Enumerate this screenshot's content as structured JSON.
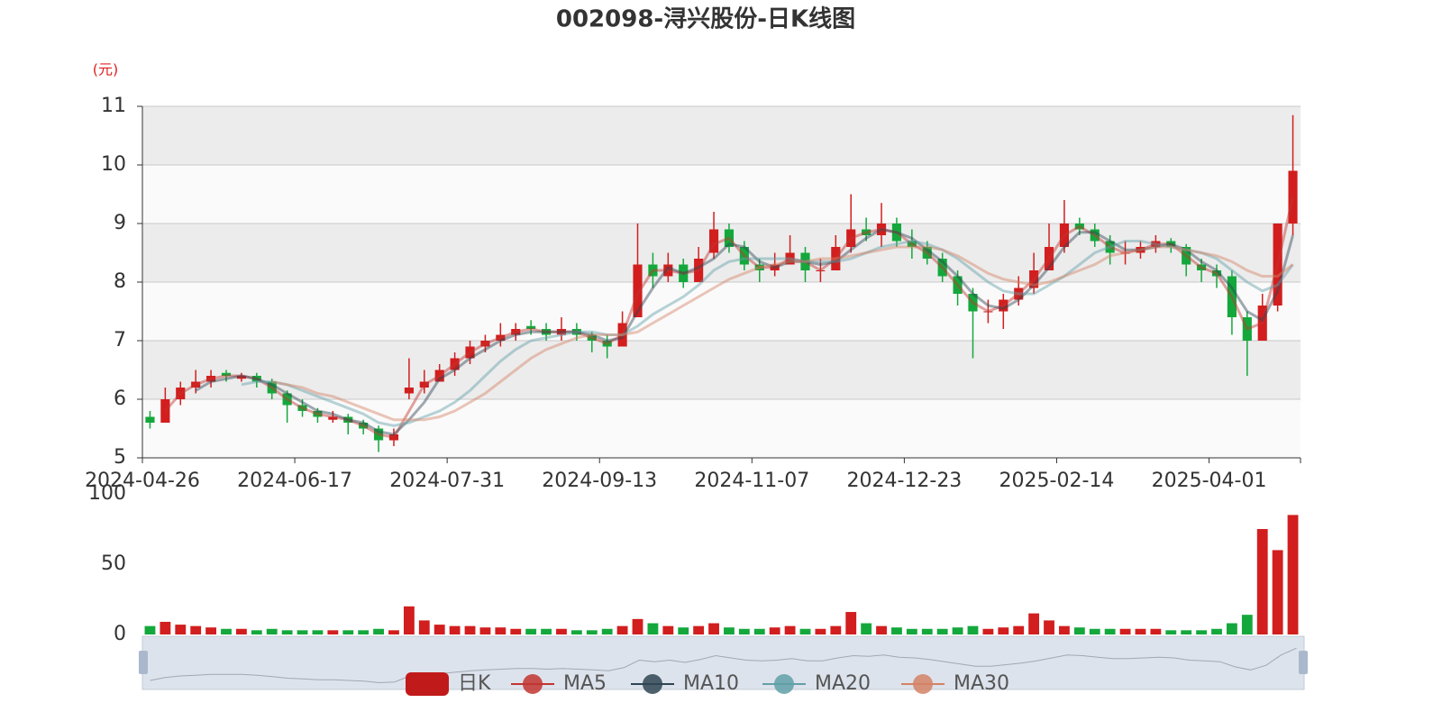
{
  "chart_data": [
    {
      "type": "candlestick",
      "title": "002098-浔兴股份-日K线图",
      "y_unit": "(元)",
      "categories": [
        "2024-04-26",
        null,
        null,
        null,
        null,
        null,
        null,
        null,
        null,
        null,
        "2024-06-17",
        null,
        null,
        null,
        null,
        null,
        null,
        null,
        null,
        null,
        "2024-07-31",
        null,
        null,
        null,
        null,
        null,
        null,
        null,
        null,
        null,
        "2024-09-13",
        null,
        null,
        null,
        null,
        null,
        null,
        null,
        null,
        null,
        "2024-11-07",
        null,
        null,
        null,
        null,
        null,
        null,
        null,
        null,
        null,
        "2024-12-23",
        null,
        null,
        null,
        null,
        null,
        null,
        null,
        null,
        null,
        "2025-02-14",
        null,
        null,
        null,
        null,
        null,
        null,
        null,
        null,
        null,
        "2025-04-01",
        null,
        null,
        null,
        null,
        null
      ],
      "ylim": [
        5,
        11
      ],
      "yticks": [
        5,
        6,
        7,
        8,
        9,
        10,
        11
      ],
      "grid": true,
      "up_color": "#d21e1e",
      "down_color": "#14a83c",
      "series": [
        {
          "name": "日K",
          "type": "candlestick",
          "color": "#c11a1a",
          "values": [
            [
              5.7,
              5.6,
              5.5,
              5.8
            ],
            [
              5.6,
              6.0,
              5.6,
              6.2
            ],
            [
              6.0,
              6.2,
              5.9,
              6.3
            ],
            [
              6.2,
              6.3,
              6.1,
              6.5
            ],
            [
              6.3,
              6.4,
              6.2,
              6.5
            ],
            [
              6.45,
              6.4,
              6.3,
              6.5
            ],
            [
              6.35,
              6.4,
              6.3,
              6.45
            ],
            [
              6.4,
              6.3,
              6.2,
              6.45
            ],
            [
              6.3,
              6.1,
              6.0,
              6.35
            ],
            [
              6.1,
              5.9,
              5.6,
              6.15
            ],
            [
              5.9,
              5.8,
              5.7,
              6.0
            ],
            [
              5.8,
              5.7,
              5.6,
              5.85
            ],
            [
              5.65,
              5.7,
              5.6,
              5.8
            ],
            [
              5.7,
              5.6,
              5.4,
              5.75
            ],
            [
              5.6,
              5.5,
              5.4,
              5.65
            ],
            [
              5.5,
              5.3,
              5.1,
              5.55
            ],
            [
              5.3,
              5.4,
              5.2,
              5.5
            ],
            [
              6.1,
              6.2,
              6.0,
              6.7
            ],
            [
              6.2,
              6.3,
              6.1,
              6.5
            ],
            [
              6.3,
              6.5,
              6.3,
              6.6
            ],
            [
              6.5,
              6.7,
              6.4,
              6.8
            ],
            [
              6.7,
              6.9,
              6.6,
              7.0
            ],
            [
              6.9,
              7.0,
              6.8,
              7.1
            ],
            [
              7.0,
              7.1,
              6.9,
              7.3
            ],
            [
              7.1,
              7.2,
              7.0,
              7.3
            ],
            [
              7.25,
              7.2,
              7.1,
              7.35
            ],
            [
              7.2,
              7.1,
              7.0,
              7.3
            ],
            [
              7.1,
              7.2,
              7.0,
              7.4
            ],
            [
              7.2,
              7.1,
              7.0,
              7.3
            ],
            [
              7.1,
              7.0,
              6.8,
              7.15
            ],
            [
              7.0,
              6.9,
              6.7,
              7.1
            ],
            [
              6.9,
              7.3,
              6.9,
              7.5
            ],
            [
              7.4,
              8.3,
              7.4,
              9.0
            ],
            [
              8.3,
              8.1,
              7.9,
              8.5
            ],
            [
              8.1,
              8.3,
              8.0,
              8.5
            ],
            [
              8.3,
              8.0,
              7.9,
              8.4
            ],
            [
              8.0,
              8.4,
              8.0,
              8.6
            ],
            [
              8.5,
              8.9,
              8.4,
              9.2
            ],
            [
              8.9,
              8.6,
              8.5,
              9.0
            ],
            [
              8.6,
              8.3,
              8.2,
              8.7
            ],
            [
              8.3,
              8.2,
              8.0,
              8.4
            ],
            [
              8.2,
              8.3,
              8.1,
              8.5
            ],
            [
              8.3,
              8.5,
              8.3,
              8.8
            ],
            [
              8.5,
              8.2,
              8.0,
              8.6
            ],
            [
              8.2,
              8.2,
              8.0,
              8.4
            ],
            [
              8.2,
              8.6,
              8.2,
              8.8
            ],
            [
              8.6,
              8.9,
              8.5,
              9.5
            ],
            [
              8.9,
              8.8,
              8.7,
              9.1
            ],
            [
              8.8,
              9.0,
              8.6,
              9.35
            ],
            [
              9.0,
              8.7,
              8.6,
              9.1
            ],
            [
              8.7,
              8.6,
              8.4,
              8.9
            ],
            [
              8.6,
              8.4,
              8.3,
              8.7
            ],
            [
              8.4,
              8.1,
              8.0,
              8.5
            ],
            [
              8.1,
              7.8,
              7.6,
              8.2
            ],
            [
              7.8,
              7.5,
              6.7,
              7.9
            ],
            [
              7.5,
              7.5,
              7.3,
              7.7
            ],
            [
              7.5,
              7.7,
              7.2,
              7.8
            ],
            [
              7.7,
              7.9,
              7.6,
              8.1
            ],
            [
              7.9,
              8.2,
              7.8,
              8.5
            ],
            [
              8.2,
              8.6,
              8.2,
              9.0
            ],
            [
              8.6,
              9.0,
              8.5,
              9.4
            ],
            [
              9.0,
              8.9,
              8.8,
              9.1
            ],
            [
              8.9,
              8.7,
              8.6,
              9.0
            ],
            [
              8.7,
              8.5,
              8.3,
              8.8
            ],
            [
              8.5,
              8.5,
              8.3,
              8.7
            ],
            [
              8.5,
              8.6,
              8.4,
              8.7
            ],
            [
              8.6,
              8.7,
              8.5,
              8.8
            ],
            [
              8.7,
              8.6,
              8.5,
              8.75
            ],
            [
              8.6,
              8.3,
              8.1,
              8.65
            ],
            [
              8.3,
              8.2,
              8.0,
              8.4
            ],
            [
              8.2,
              8.1,
              7.9,
              8.3
            ],
            [
              8.1,
              7.4,
              7.1,
              8.2
            ],
            [
              7.4,
              7.0,
              6.4,
              7.5
            ],
            [
              7.0,
              7.6,
              7.0,
              7.8
            ],
            [
              7.6,
              9.0,
              7.5,
              9.0
            ],
            [
              9.0,
              9.9,
              8.8,
              10.85
            ]
          ]
        },
        {
          "name": "MA5",
          "type": "line",
          "color": "#c23531",
          "values": [
            null,
            5.8,
            6.1,
            6.25,
            6.35,
            6.4,
            6.4,
            6.35,
            6.2,
            6.0,
            5.85,
            5.75,
            5.7,
            5.65,
            5.55,
            5.4,
            5.35,
            5.8,
            6.25,
            6.4,
            6.6,
            6.8,
            6.95,
            7.05,
            7.15,
            7.2,
            7.15,
            7.15,
            7.15,
            7.05,
            6.95,
            7.1,
            7.8,
            8.2,
            8.2,
            8.15,
            8.2,
            8.65,
            8.75,
            8.45,
            8.25,
            8.25,
            8.4,
            8.35,
            8.2,
            8.4,
            8.75,
            8.85,
            8.9,
            8.85,
            8.65,
            8.5,
            8.25,
            7.95,
            7.65,
            7.5,
            7.6,
            7.8,
            8.05,
            8.4,
            8.8,
            8.95,
            8.8,
            8.6,
            8.5,
            8.55,
            8.65,
            8.65,
            8.45,
            8.25,
            8.15,
            7.75,
            7.2,
            7.3,
            8.3,
            9.45
          ]
        },
        {
          "name": "MA10",
          "type": "line",
          "color": "#2f4554",
          "values": [
            null,
            null,
            null,
            6.15,
            6.3,
            6.35,
            6.4,
            6.35,
            6.25,
            6.1,
            5.95,
            5.8,
            5.75,
            5.65,
            5.6,
            5.45,
            5.4,
            5.65,
            5.95,
            6.35,
            6.5,
            6.7,
            6.85,
            7.0,
            7.1,
            7.15,
            7.15,
            7.15,
            7.15,
            7.1,
            7.0,
            7.05,
            7.5,
            7.9,
            8.25,
            8.15,
            8.25,
            8.4,
            8.65,
            8.6,
            8.35,
            8.25,
            8.35,
            8.35,
            8.3,
            8.35,
            8.55,
            8.75,
            8.9,
            8.85,
            8.75,
            8.55,
            8.35,
            8.1,
            7.8,
            7.6,
            7.55,
            7.7,
            7.95,
            8.25,
            8.6,
            8.85,
            8.85,
            8.7,
            8.55,
            8.55,
            8.6,
            8.65,
            8.55,
            8.35,
            8.2,
            7.9,
            7.5,
            7.35,
            7.85,
            8.8
          ]
        },
        {
          "name": "MA20",
          "type": "line",
          "color": "#61a0a8",
          "values": [
            null,
            null,
            null,
            null,
            null,
            null,
            6.25,
            6.3,
            6.3,
            6.25,
            6.15,
            6.05,
            5.95,
            5.85,
            5.75,
            5.6,
            5.55,
            5.6,
            5.7,
            5.8,
            5.95,
            6.15,
            6.4,
            6.65,
            6.85,
            7.0,
            7.05,
            7.1,
            7.15,
            7.15,
            7.1,
            7.1,
            7.25,
            7.45,
            7.6,
            7.75,
            7.95,
            8.2,
            8.35,
            8.4,
            8.4,
            8.4,
            8.4,
            8.35,
            8.35,
            8.35,
            8.4,
            8.5,
            8.6,
            8.65,
            8.7,
            8.65,
            8.55,
            8.4,
            8.2,
            8.0,
            7.85,
            7.8,
            7.8,
            7.95,
            8.1,
            8.3,
            8.5,
            8.6,
            8.7,
            8.7,
            8.65,
            8.6,
            8.55,
            8.5,
            8.4,
            8.2,
            8.0,
            7.85,
            7.95,
            8.3
          ]
        },
        {
          "name": "MA30",
          "type": "line",
          "color": "#d48265",
          "values": [
            null,
            null,
            null,
            null,
            null,
            null,
            null,
            null,
            6.3,
            6.25,
            6.2,
            6.1,
            6.05,
            5.95,
            5.85,
            5.75,
            5.65,
            5.65,
            5.65,
            5.7,
            5.8,
            5.95,
            6.1,
            6.3,
            6.5,
            6.7,
            6.85,
            6.95,
            7.05,
            7.1,
            7.1,
            7.1,
            7.15,
            7.3,
            7.45,
            7.6,
            7.75,
            7.9,
            8.05,
            8.15,
            8.25,
            8.3,
            8.35,
            8.35,
            8.4,
            8.4,
            8.45,
            8.5,
            8.55,
            8.6,
            8.6,
            8.6,
            8.55,
            8.45,
            8.3,
            8.15,
            8.05,
            8.0,
            7.95,
            8.0,
            8.1,
            8.2,
            8.3,
            8.45,
            8.5,
            8.55,
            8.6,
            8.6,
            8.55,
            8.5,
            8.45,
            8.35,
            8.2,
            8.1,
            8.1,
            8.3
          ]
        }
      ]
    },
    {
      "type": "bar",
      "ylim": [
        0,
        100
      ],
      "yticks": [
        0,
        50,
        100
      ],
      "values": [
        6,
        9,
        7,
        6,
        5,
        4,
        4,
        3,
        4,
        3,
        3,
        3,
        3,
        3,
        3,
        4,
        3,
        20,
        10,
        7,
        6,
        6,
        5,
        5,
        4,
        4,
        4,
        4,
        3,
        3,
        4,
        6,
        11,
        8,
        6,
        5,
        6,
        8,
        5,
        4,
        4,
        5,
        6,
        4,
        4,
        6,
        16,
        8,
        6,
        5,
        4,
        4,
        4,
        5,
        6,
        4,
        5,
        6,
        15,
        10,
        6,
        5,
        4,
        4,
        4,
        4,
        4,
        3,
        3,
        3,
        4,
        8,
        14,
        75,
        60,
        85
      ]
    }
  ]
}
